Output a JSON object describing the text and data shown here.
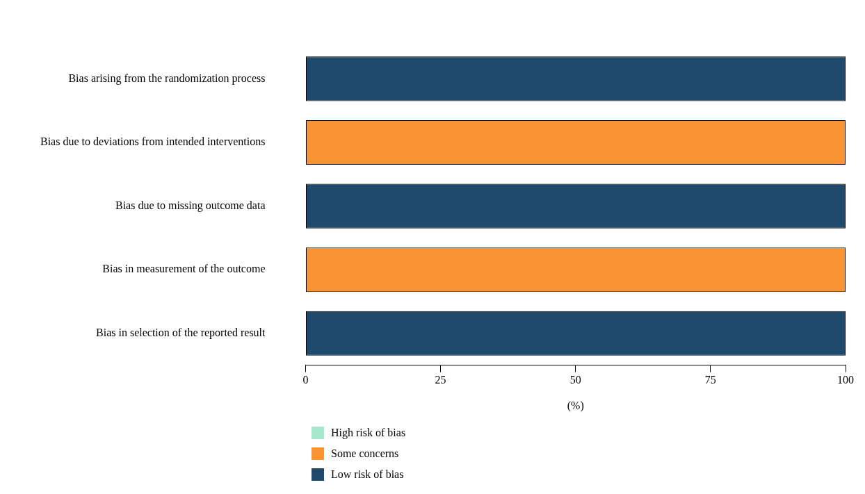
{
  "chart_data": {
    "type": "bar",
    "orientation": "horizontal",
    "stacked": true,
    "categories": [
      "Bias arising from the randomization process",
      "Bias due to deviations from intended interventions",
      "Bias due to missing outcome data",
      "Bias in measurement of the outcome",
      "Bias in selection of the reported result"
    ],
    "series": [
      {
        "name": "High risk of bias",
        "color": "#a6e8cf",
        "values": [
          0,
          0,
          0,
          0,
          0
        ]
      },
      {
        "name": "Some concerns",
        "color": "#f79433",
        "values": [
          0,
          100,
          0,
          100,
          0
        ]
      },
      {
        "name": "Low risk of bias",
        "color": "#1f4a6b",
        "values": [
          100,
          0,
          100,
          0,
          100
        ]
      }
    ],
    "xlim": [
      0,
      100
    ],
    "xticks": [
      0,
      25,
      50,
      75,
      100
    ],
    "xlabel": "(%)",
    "grid": false,
    "legend": "bottom"
  }
}
